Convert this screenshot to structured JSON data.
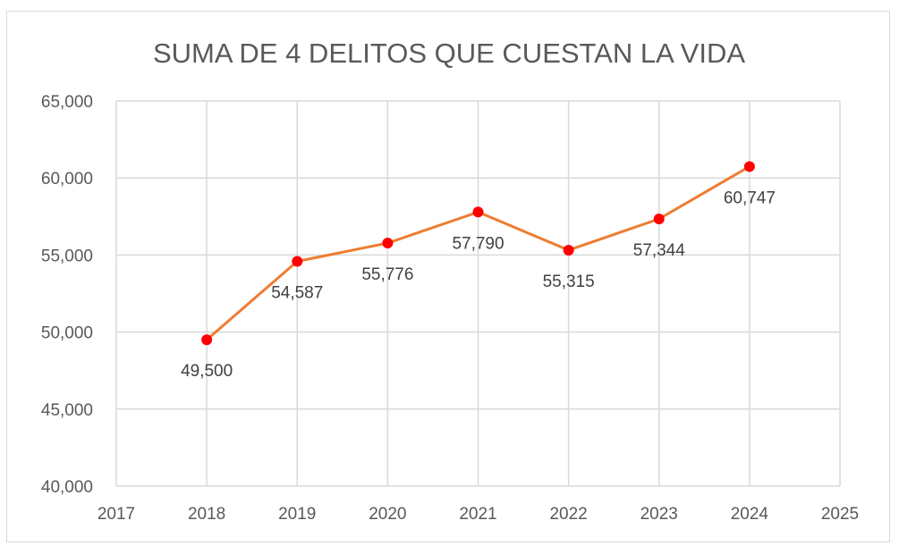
{
  "chart_data": {
    "type": "line",
    "title": "SUMA DE 4 DELITOS QUE CUESTAN LA VIDA",
    "xlabel": "",
    "ylabel": "",
    "x": [
      2018,
      2019,
      2020,
      2021,
      2022,
      2023,
      2024
    ],
    "values": [
      49500,
      54587,
      55776,
      57790,
      55315,
      57344,
      60747
    ],
    "data_labels": [
      "49,500",
      "54,587",
      "55,776",
      "57,790",
      "55,315",
      "57,344",
      "60,747"
    ],
    "xlim": [
      2017,
      2025
    ],
    "ylim": [
      40000,
      65000
    ],
    "x_ticks": [
      "2017",
      "2018",
      "2019",
      "2020",
      "2021",
      "2022",
      "2023",
      "2024",
      "2025"
    ],
    "y_ticks": [
      "40,000",
      "45,000",
      "50,000",
      "55,000",
      "60,000",
      "65,000"
    ],
    "grid": true,
    "legend": "none",
    "colors": {
      "line": "#ed7d31",
      "marker": "#ff0000",
      "grid": "#d9d9d9",
      "text": "#595959"
    }
  }
}
